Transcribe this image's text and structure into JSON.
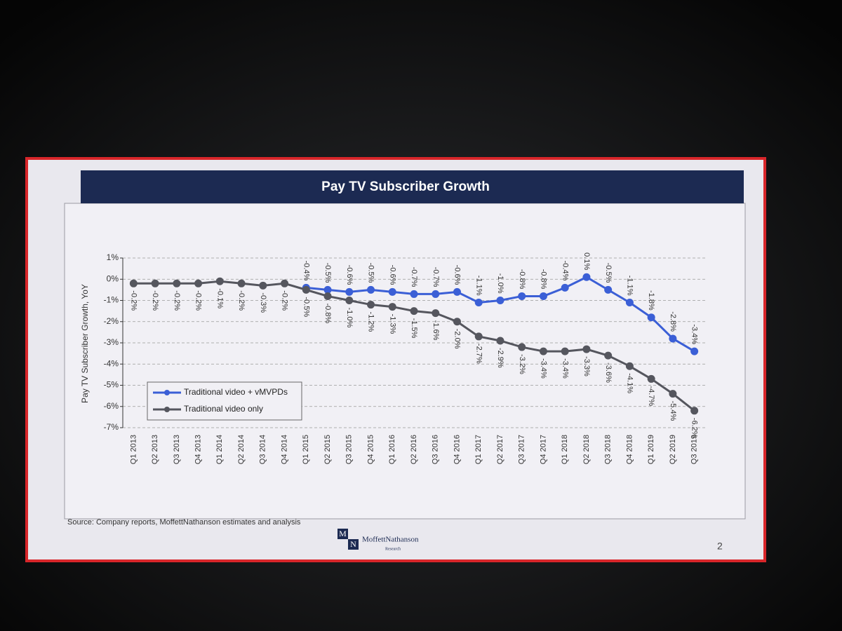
{
  "chart_data": {
    "type": "line",
    "title": "Pay TV Subscriber Growth",
    "y_label": "Pay TV Subscriber Growth, YoY",
    "categories": [
      "Q1 2013",
      "Q2 2013",
      "Q3 2013",
      "Q4 2013",
      "Q1 2014",
      "Q2 2014",
      "Q3 2014",
      "Q4 2014",
      "Q1 2015",
      "Q2 2015",
      "Q3 2015",
      "Q4 2015",
      "Q1 2016",
      "Q2 2016",
      "Q3 2016",
      "Q4 2016",
      "Q1 2017",
      "Q2 2017",
      "Q3 2017",
      "Q4 2017",
      "Q1 2018",
      "Q2 2018",
      "Q3 2018",
      "Q4 2018",
      "Q1 2019",
      "Q2 2019",
      "Q3 2019"
    ],
    "series": [
      {
        "name": "Traditional video + vMVPDs",
        "color": "#3b5fd6",
        "values": [
          null,
          null,
          null,
          null,
          null,
          null,
          null,
          null,
          -0.4,
          -0.5,
          -0.6,
          -0.5,
          -0.6,
          -0.7,
          -0.7,
          -0.6,
          -1.1,
          -1.0,
          -0.8,
          -0.8,
          -0.4,
          0.1,
          -0.5,
          -1.1,
          -1.8,
          -2.8,
          -3.4
        ],
        "value_labels": [
          null,
          null,
          null,
          null,
          null,
          null,
          null,
          null,
          "-0.4%",
          "-0.5%",
          "-0.6%",
          "-0.5%",
          "-0.6%",
          "-0.7%",
          "-0.7%",
          "-0.6%",
          "-1.1%",
          "-1.0%",
          "-0.8%",
          "-0.8%",
          "-0.4%",
          "0.1%",
          "-0.5%",
          "-1.1%",
          "-1.8%",
          "-2.8%",
          "-3.4%"
        ]
      },
      {
        "name": "Traditional video only",
        "color": "#55565e",
        "values": [
          -0.2,
          -0.2,
          -0.2,
          -0.2,
          -0.1,
          -0.2,
          -0.3,
          -0.2,
          -0.5,
          -0.8,
          -1.0,
          -1.2,
          -1.3,
          -1.5,
          -1.6,
          -2.0,
          -2.7,
          -2.9,
          -3.2,
          -3.4,
          -3.4,
          -3.3,
          -3.6,
          -4.1,
          -4.7,
          -5.4,
          -6.2
        ],
        "value_labels": [
          "-0.2%",
          "-0.2%",
          "-0.2%",
          "-0.2%",
          "-0.1%",
          "-0.2%",
          "-0.3%",
          "-0.2%",
          "-0.5%",
          "-0.8%",
          "-1.0%",
          "-1.2%",
          "-1.3%",
          "-1.5%",
          "-1.6%",
          "-2.0%",
          "-2.7%",
          "-2.9%",
          "-3.2%",
          "-3.4%",
          "-3.4%",
          "-3.3%",
          "-3.6%",
          "-4.1%",
          "-4.7%",
          "-5.4%",
          "-6.2%"
        ]
      }
    ],
    "ylim": [
      -7,
      1
    ],
    "yticks": [
      {
        "value": 1,
        "label": "1%"
      },
      {
        "value": 0,
        "label": "0%"
      },
      {
        "value": -1,
        "label": "-1%"
      },
      {
        "value": -2,
        "label": "-2%"
      },
      {
        "value": -3,
        "label": "-3%"
      },
      {
        "value": -4,
        "label": "-4%"
      },
      {
        "value": -5,
        "label": "-5%"
      },
      {
        "value": -6,
        "label": "-6%"
      },
      {
        "value": -7,
        "label": "-7%"
      }
    ],
    "grid": true,
    "legend": "lower left"
  },
  "slide": {
    "source": "Source: Company reports, MoffettNathanson estimates and analysis",
    "logo": {
      "letters": [
        "M",
        "N"
      ],
      "name": "MoffettNathanson",
      "subtitle": "Research"
    },
    "page_number": "2"
  }
}
